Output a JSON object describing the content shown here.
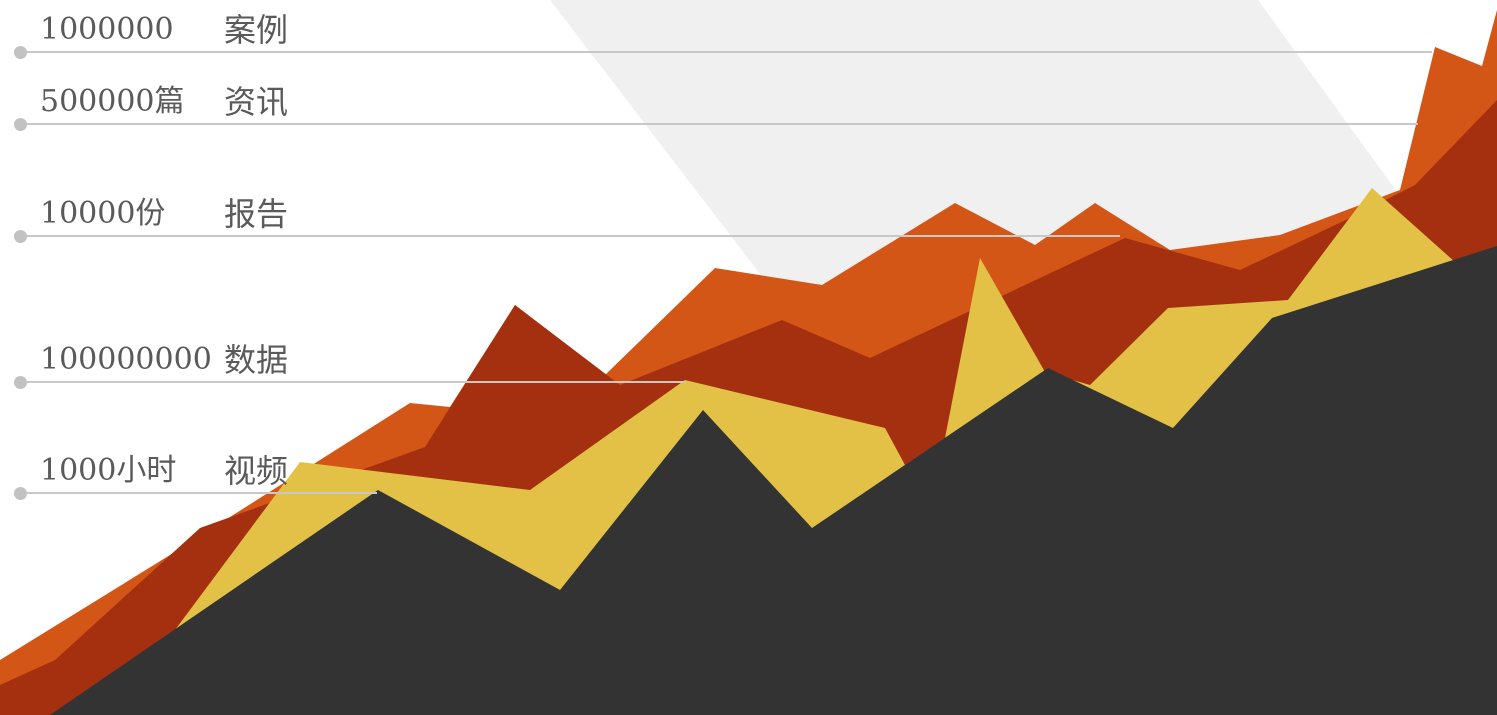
{
  "stats": [
    {
      "value": "1000000",
      "label": "案例"
    },
    {
      "value": "500000篇",
      "label": "资讯"
    },
    {
      "value": "10000份",
      "label": "报告"
    },
    {
      "value": "100000000",
      "label": "数据"
    },
    {
      "value": "1000小时",
      "label": "视频"
    }
  ],
  "colors": {
    "background": "#ffffff",
    "shadow_band": "#f0f0f0",
    "orange": "#d45616",
    "dark_red": "#a5300f",
    "yellow": "#e3c046",
    "charcoal": "#333333",
    "rule": "#c8c8c8",
    "text": "#5a5a5a"
  }
}
